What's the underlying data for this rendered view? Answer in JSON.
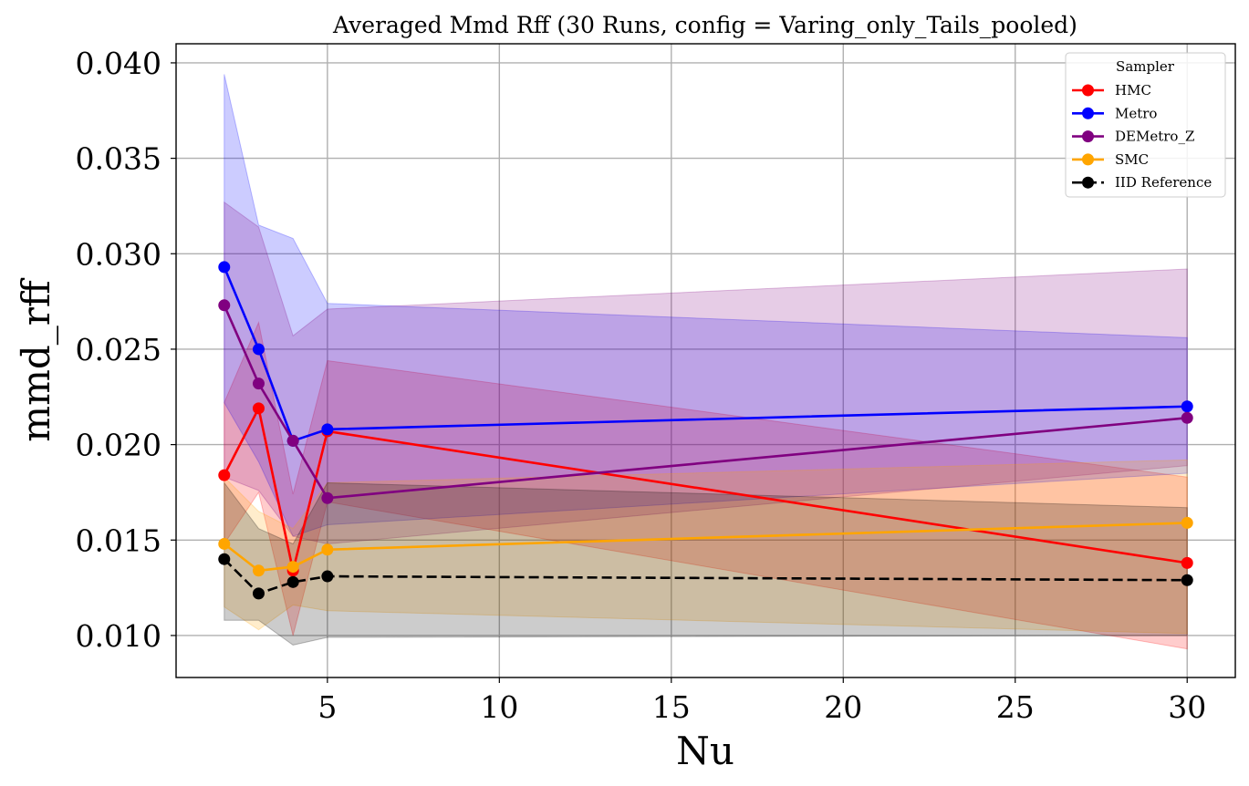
{
  "chart_data": {
    "type": "line",
    "title": "Averaged Mmd Rff (30 Runs, config = Varing_only_Tails_pooled)",
    "xlabel": "Nu",
    "ylabel": "mmd_rff",
    "x": [
      2,
      3,
      4,
      5,
      30
    ],
    "xlim": [
      0.6,
      31.4
    ],
    "ylim": [
      0.0078,
      0.041
    ],
    "xticks": [
      5,
      10,
      15,
      20,
      25,
      30
    ],
    "xtick_labels": [
      "5",
      "10",
      "15",
      "20",
      "25",
      "30"
    ],
    "yticks": [
      0.01,
      0.015,
      0.02,
      0.025,
      0.03,
      0.035,
      0.04
    ],
    "ytick_labels": [
      "0.010",
      "0.015",
      "0.020",
      "0.025",
      "0.030",
      "0.035",
      "0.040"
    ],
    "grid": true,
    "legend": {
      "title": "Sampler",
      "placement": "top-right"
    },
    "series": [
      {
        "name": "HMC",
        "color": "#ff0000",
        "dashed": false,
        "values": [
          0.0184,
          0.0219,
          0.0134,
          0.0207,
          0.0138
        ],
        "band_lower": [
          0.0148,
          0.0175,
          0.01,
          0.017,
          0.0093
        ],
        "band_upper": [
          0.0222,
          0.0264,
          0.0174,
          0.0244,
          0.0183
        ]
      },
      {
        "name": "Metro",
        "color": "#0000ff",
        "dashed": false,
        "values": [
          0.0293,
          0.025,
          0.0202,
          0.0208,
          0.022
        ],
        "band_lower": [
          0.0222,
          0.0191,
          0.0152,
          0.0158,
          0.0185
        ],
        "band_upper": [
          0.0394,
          0.0315,
          0.0308,
          0.0274,
          0.0256
        ]
      },
      {
        "name": "DEMetro_Z",
        "color": "#800080",
        "dashed": false,
        "values": [
          0.0273,
          0.0232,
          0.0202,
          0.0172,
          0.0214
        ],
        "band_lower": [
          0.0183,
          0.0176,
          0.0152,
          0.0148,
          0.0189
        ],
        "band_upper": [
          0.0327,
          0.0314,
          0.0257,
          0.0271,
          0.0292
        ]
      },
      {
        "name": "SMC",
        "color": "#ffa500",
        "dashed": false,
        "values": [
          0.0148,
          0.0134,
          0.0136,
          0.0145,
          0.0159
        ],
        "band_lower": [
          0.0115,
          0.0103,
          0.0116,
          0.0113,
          0.0101
        ],
        "band_upper": [
          0.0183,
          0.0165,
          0.0156,
          0.018,
          0.0192
        ]
      },
      {
        "name": "IID Reference",
        "color": "#000000",
        "dashed": true,
        "values": [
          0.014,
          0.0122,
          0.0128,
          0.0131,
          0.0129
        ],
        "band_lower": [
          0.0108,
          0.0108,
          0.0095,
          0.0099,
          0.01
        ],
        "band_upper": [
          0.018,
          0.0156,
          0.0148,
          0.018,
          0.0167
        ]
      }
    ]
  }
}
